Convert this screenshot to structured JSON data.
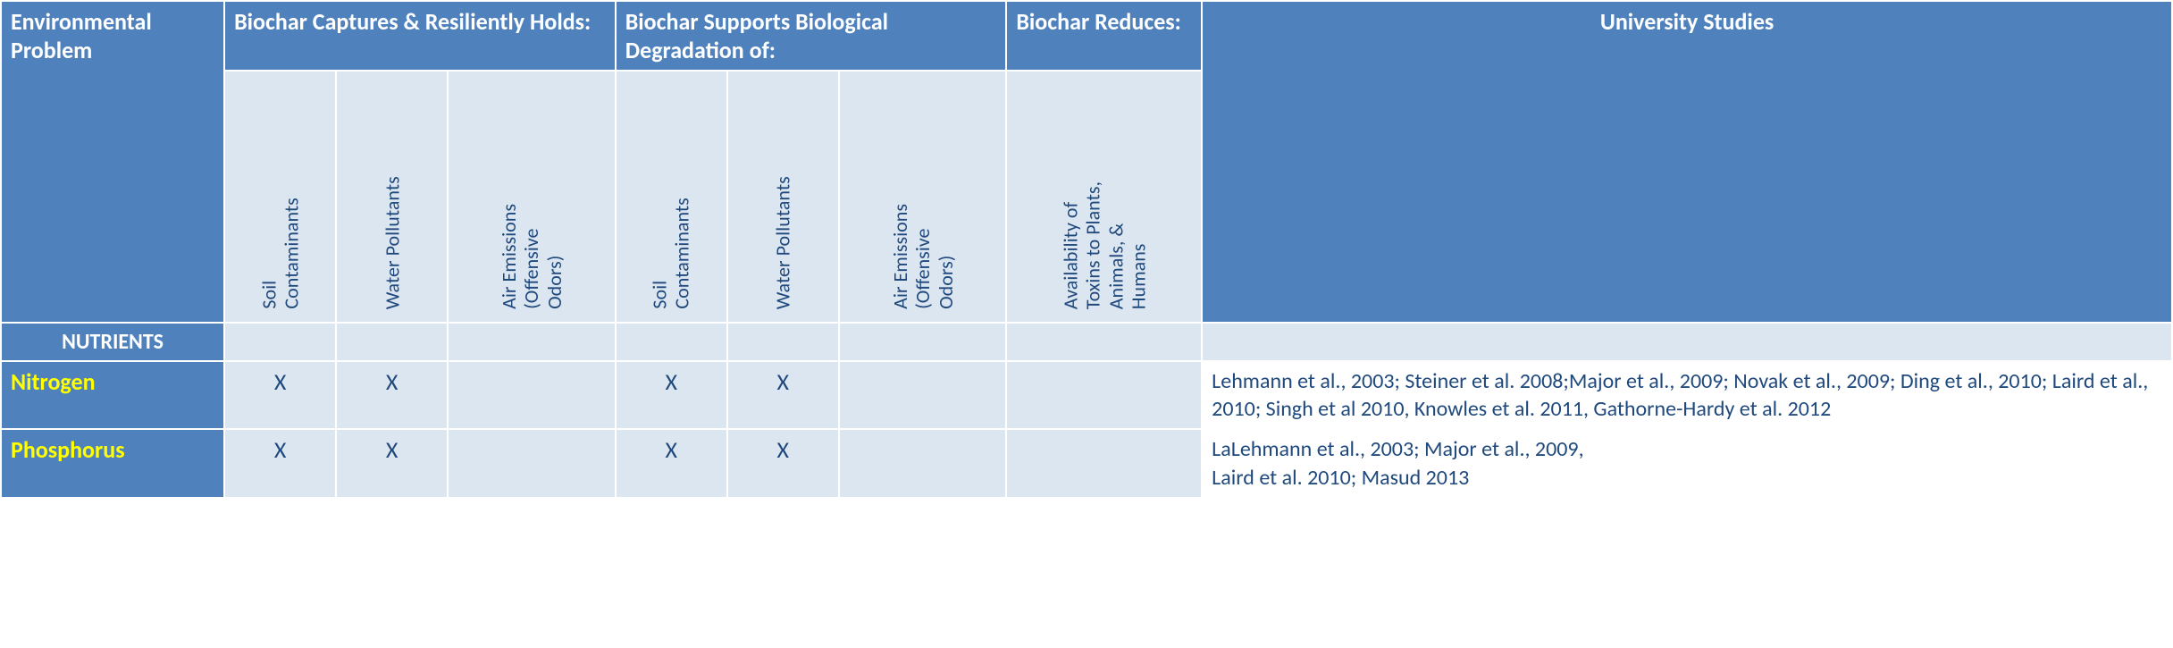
{
  "headers": {
    "env": "Environmental Problem",
    "captures": "Biochar Captures & Resiliently Holds:",
    "supports": "Biochar Supports Biological Degradation of:",
    "reduces": "Biochar Reduces:",
    "studies": "University Studies"
  },
  "subheaders": {
    "soil1": "Soil\nContaminants",
    "water1": "Water Pollutants",
    "air1": "Air Emissions\n(Offensive\nOdors)",
    "soil2": "Soil\nContaminants",
    "water2": "Water Pollutants",
    "air2": "Air Emissions\n(Offensive\nOdors)",
    "avail": "Availability of\nToxins to Plants,\nAnimals, &\nHumans"
  },
  "section": "NUTRIENTS",
  "rows": [
    {
      "label": "Nitrogen",
      "c1": "X",
      "c2": "X",
      "c3": "",
      "c4": "X",
      "c5": "X",
      "c6": "",
      "c7": "",
      "study": "Lehmann et al., 2003; Steiner et al. 2008;Major et al., 2009; Novak et al., 2009; Ding et al., 2010; Laird et al., 2010; Singh et al 2010, Knowles et al. 2011,  Gathorne-Hardy et al. 2012"
    },
    {
      "label": "Phosphorus",
      "c1": "X",
      "c2": "X",
      "c3": "",
      "c4": "X",
      "c5": "X",
      "c6": "",
      "c7": "",
      "study": "LaLehmann et al., 2003; Major et al., 2009,\nLaird et al. 2010;  Masud 2013"
    }
  ],
  "colors": {
    "header_bg": "#4f81bd",
    "header_fg": "#ffffff",
    "row_label_fg": "#ffff00",
    "body_bg": "#dce6f1",
    "text": "#1f497d",
    "border": "#ffffff"
  }
}
